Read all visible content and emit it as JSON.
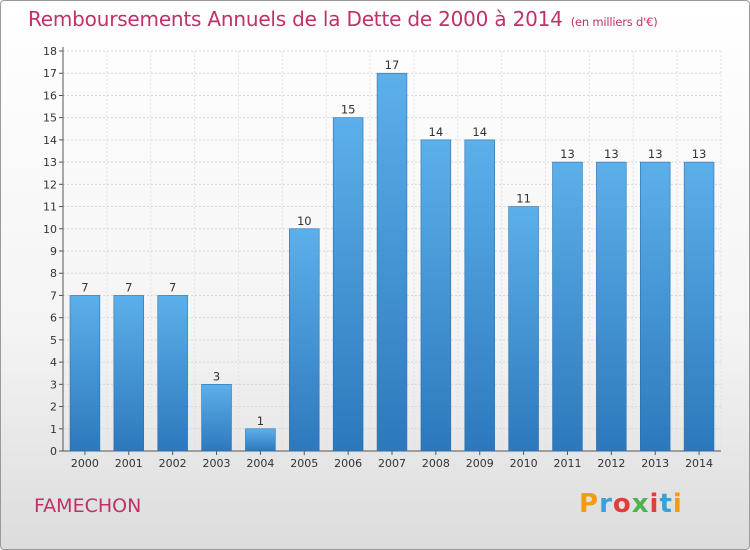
{
  "title": "Remboursements Annuels de la Dette de 2000 à 2014",
  "unit": "(en milliers d'€)",
  "commune": "FAMECHON",
  "logo": {
    "letters": [
      "P",
      "r",
      "o",
      "x",
      "i",
      "t",
      "i"
    ],
    "colors": [
      "#f39c12",
      "#3aa0dc",
      "#e23d3d",
      "#4db34d",
      "#e23d3d",
      "#3aa0dc",
      "#f39c12"
    ]
  },
  "colors": {
    "bar": "#4a9fdf",
    "bar_dark": "#2e7cc0",
    "title": "#c0306a"
  },
  "chart_data": {
    "type": "bar",
    "title": "Remboursements Annuels de la Dette de 2000 à 2014",
    "subtitle": "(en milliers d'€)",
    "categories": [
      "2000",
      "2001",
      "2002",
      "2003",
      "2004",
      "2005",
      "2006",
      "2007",
      "2008",
      "2009",
      "2010",
      "2011",
      "2012",
      "2013",
      "2014"
    ],
    "values": [
      7,
      7,
      7,
      3,
      1,
      10,
      15,
      17,
      14,
      14,
      11,
      13,
      13,
      13,
      13
    ],
    "ylim": [
      0,
      18
    ],
    "yticks": [
      0,
      1,
      2,
      3,
      4,
      5,
      6,
      7,
      8,
      9,
      10,
      11,
      12,
      13,
      14,
      15,
      16,
      17,
      18
    ],
    "grid": true,
    "legend": "none"
  }
}
